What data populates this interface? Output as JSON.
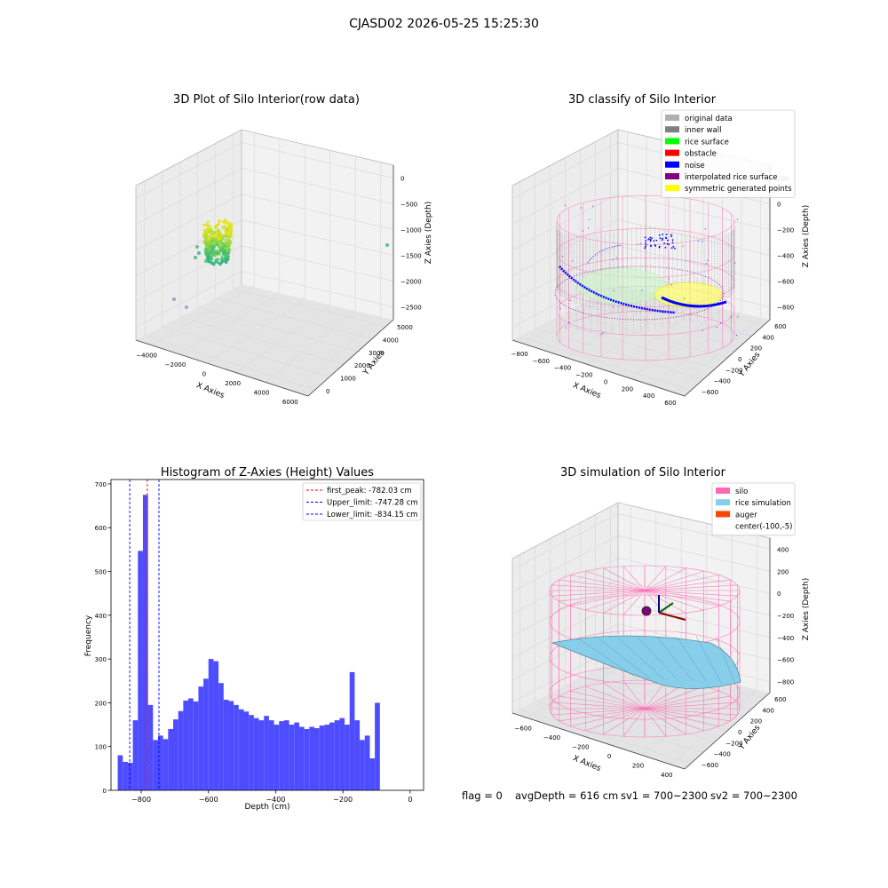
{
  "figure": {
    "suptitle": "CJASD02 2026-05-25 15:25:30",
    "status_line": {
      "flag": "flag = 0",
      "avg_depth": "avgDepth = 616 cm",
      "sv1": "sv1 = 700~2300",
      "sv2": "sv2 = 700~2300"
    }
  },
  "colors": {
    "grid": "#dcdcdc",
    "pane_left": "#ececec",
    "pane_right": "#f2f2f2",
    "pane_floor": "#e4e4e4",
    "hist_bar": "#4d4dff",
    "peak_line": "#ff0000",
    "limit_line": "#0000ff",
    "silo_wire": "#ff69b4",
    "rice_fill": "#87ceeb",
    "gray_points": "#8c8c8c",
    "noise_points": "#0000ff"
  },
  "chart_data": [
    {
      "type": "scatter",
      "title": "3D Plot of Silo Interior(row data)",
      "xlabel": "X Axies",
      "ylabel": "Y Axies",
      "zlabel": "Z Axies (Depth)",
      "xticks": [
        "−4000",
        "−2000",
        "0",
        "2000",
        "4000",
        "6000"
      ],
      "yticks": [
        "0",
        "1000",
        "2000",
        "3000",
        "4000",
        "5000"
      ],
      "zticks": [
        "0",
        "−500",
        "−1000",
        "−1500",
        "−2000",
        "−2500"
      ],
      "xlim": [
        -4000,
        6500
      ],
      "ylim": [
        -500,
        5500
      ],
      "zlim": [
        -2900,
        100
      ]
    },
    {
      "type": "scatter",
      "title": "3D classify of Silo Interior",
      "xlabel": "X Axies",
      "ylabel": "Y Axies",
      "zlabel": "Z Axies (Depth)",
      "xticks": [
        "−800",
        "−600",
        "−400",
        "−200",
        "0",
        "200",
        "400",
        "600"
      ],
      "yticks": [
        "−600",
        "−400",
        "−200",
        "0",
        "200",
        "400",
        "600"
      ],
      "zticks": [
        "200",
        "0",
        "−200",
        "−400",
        "−600",
        "−800"
      ],
      "xlim": [
        -800,
        600
      ],
      "ylim": [
        -650,
        650
      ],
      "zlim": [
        -900,
        250
      ],
      "legend": {
        "position": "top-right",
        "entries": [
          {
            "label": "original data",
            "color": "#b0b0b0"
          },
          {
            "label": "inner wall",
            "color": "#808080"
          },
          {
            "label": "rice surface",
            "color": "#00ff00"
          },
          {
            "label": "obstacle",
            "color": "#ff0000"
          },
          {
            "label": "noise",
            "color": "#0000ff"
          },
          {
            "label": "interpolated rice surface",
            "color": "#800080"
          },
          {
            "label": "symmetric generated points",
            "color": "#ffff00"
          }
        ]
      }
    },
    {
      "type": "bar",
      "title": "Histogram of Z-Axies (Height) Values",
      "xlabel": "Depth (cm)",
      "ylabel": "Frequency",
      "xlim": [
        -890,
        40
      ],
      "ylim": [
        0,
        710
      ],
      "xticks": [
        -800,
        -600,
        -400,
        -200,
        0
      ],
      "xtick_labels": [
        "−800",
        "−600",
        "−400",
        "−200",
        "0"
      ],
      "yticks": [
        0,
        100,
        200,
        300,
        400,
        500,
        600,
        700
      ],
      "bin_start": -870,
      "bin_width": 15,
      "values": [
        80,
        65,
        63,
        160,
        547,
        675,
        195,
        115,
        125,
        117,
        140,
        162,
        181,
        205,
        210,
        203,
        237,
        255,
        300,
        295,
        245,
        207,
        204,
        195,
        185,
        180,
        172,
        165,
        160,
        170,
        160,
        150,
        158,
        160,
        150,
        155,
        145,
        140,
        145,
        142,
        148,
        150,
        155,
        160,
        165,
        150,
        270,
        160,
        115,
        125,
        73,
        200
      ],
      "vlines": [
        {
          "x": -782.03,
          "style": "peak"
        },
        {
          "x": -747.28,
          "style": "limit"
        },
        {
          "x": -834.15,
          "style": "limit"
        }
      ],
      "legend": {
        "position": "top-right",
        "entries": [
          {
            "label": "first_peak: -782.03 cm",
            "style": "peak"
          },
          {
            "label": "Upper_limit: -747.28 cm",
            "style": "limit"
          },
          {
            "label": "Lower_limit: -834.15 cm",
            "style": "limit"
          }
        ]
      }
    },
    {
      "type": "area",
      "title": "3D simulation of Silo Interior",
      "xlabel": "X Axies",
      "ylabel": "Y Axies",
      "zlabel": "Z Axies (Depth)",
      "xticks": [
        "−600",
        "−400",
        "−200",
        "0",
        "200",
        "400"
      ],
      "yticks": [
        "−600",
        "−400",
        "−200",
        "0",
        "200",
        "400",
        "600"
      ],
      "zticks": [
        "400",
        "200",
        "0",
        "−200",
        "−400",
        "−600",
        "−800"
      ],
      "xlim": [
        -700,
        500
      ],
      "ylim": [
        -650,
        650
      ],
      "zlim": [
        -900,
        450
      ],
      "legend": {
        "position": "top-right",
        "entries": [
          {
            "label": "silo",
            "color": "#ff69b4"
          },
          {
            "label": "rice simulation",
            "color": "#87ceeb"
          },
          {
            "label": "auger",
            "color": "#ff4500"
          },
          {
            "label": "center(-100,-5)",
            "color": ""
          }
        ]
      }
    }
  ]
}
